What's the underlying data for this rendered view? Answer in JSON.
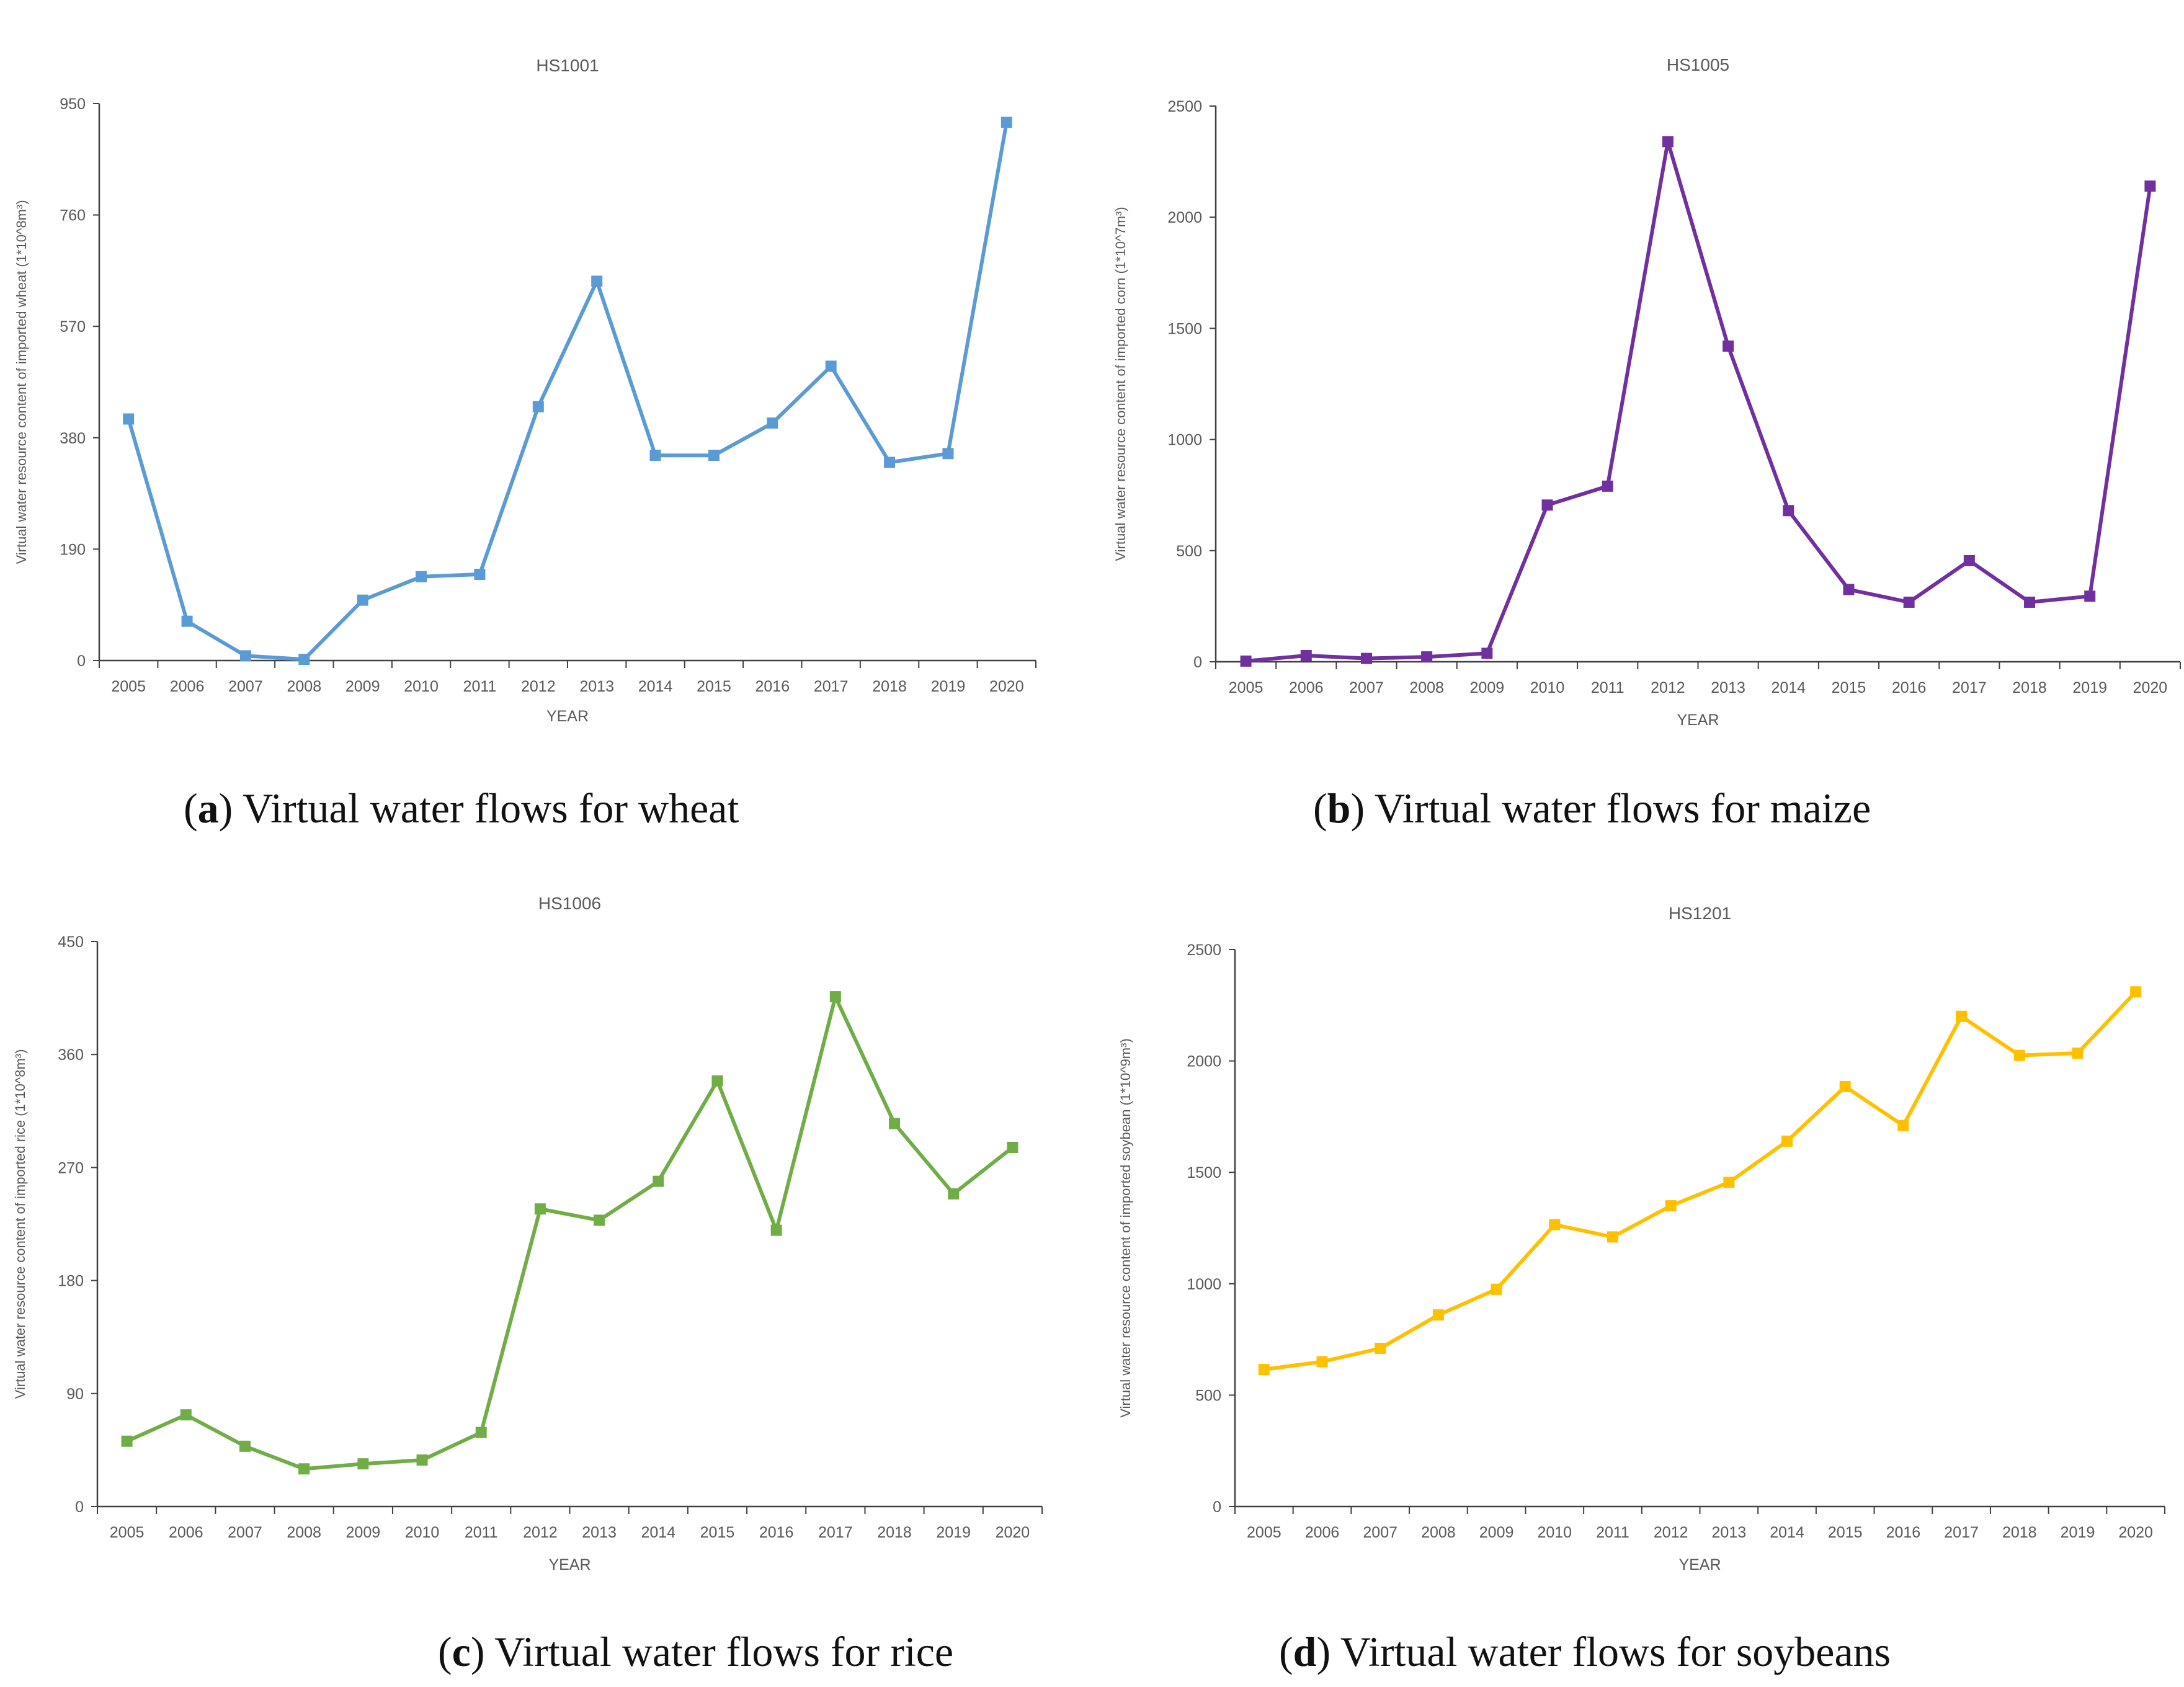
{
  "colors": {
    "wheat": "#5b9bd5",
    "maize": "#7030a0",
    "rice": "#70ad47",
    "soybean": "#ffc000",
    "axis": "#404040",
    "text": "#595959"
  },
  "chart_data": [
    {
      "id": "a",
      "type": "line",
      "title": "HS1001",
      "xlabel": "YEAR",
      "ylabel": "Virtual water resource content of imported wheat   (1*10^8m³)",
      "ylim": [
        0,
        950
      ],
      "yticks": [
        "0",
        "190",
        "380",
        "570",
        "760",
        "950"
      ],
      "categories": [
        "2005",
        "2006",
        "2007",
        "2008",
        "2009",
        "2010",
        "2011",
        "2012",
        "2013",
        "2014",
        "2015",
        "2016",
        "2017",
        "2018",
        "2019",
        "2020"
      ],
      "series": [
        {
          "name": "wheat",
          "values": [
            412,
            67,
            8,
            2,
            103,
            143,
            147,
            433,
            647,
            350,
            350,
            405,
            502,
            338,
            353,
            918
          ]
        }
      ],
      "caption_letter": "a",
      "caption_text": "Virtual water flows for wheat"
    },
    {
      "id": "b",
      "type": "line",
      "title": "HS1005",
      "xlabel": "YEAR",
      "ylabel": "Virtual water resource content of imported corn   (1*10^7m³)",
      "ylim": [
        0,
        2500
      ],
      "yticks": [
        "0",
        "500",
        "1000",
        "1500",
        "2000",
        "2500"
      ],
      "categories": [
        "2005",
        "2006",
        "2007",
        "2008",
        "2009",
        "2010",
        "2011",
        "2012",
        "2013",
        "2014",
        "2015",
        "2016",
        "2017",
        "2018",
        "2019",
        "2020"
      ],
      "series": [
        {
          "name": "maize",
          "values": [
            3,
            28,
            15,
            22,
            38,
            705,
            790,
            2340,
            1420,
            680,
            325,
            268,
            455,
            268,
            295,
            2140
          ]
        }
      ],
      "caption_letter": "b",
      "caption_text": "Virtual water flows for maize"
    },
    {
      "id": "c",
      "type": "line",
      "title": "HS1006",
      "xlabel": "YEAR",
      "ylabel": "Virtual water resource content of imported rice   (1*10^8m³)",
      "ylim": [
        0,
        450
      ],
      "yticks": [
        "0",
        "90",
        "180",
        "270",
        "360",
        "450"
      ],
      "categories": [
        "2005",
        "2006",
        "2007",
        "2008",
        "2009",
        "2010",
        "2011",
        "2012",
        "2013",
        "2014",
        "2015",
        "2016",
        "2017",
        "2018",
        "2019",
        "2020"
      ],
      "series": [
        {
          "name": "rice",
          "values": [
            52,
            73,
            48,
            30,
            34,
            37,
            59,
            237,
            228,
            259,
            339,
            220,
            406,
            305,
            249,
            286
          ]
        }
      ],
      "caption_letter": "c",
      "caption_text": "Virtual water flows for rice"
    },
    {
      "id": "d",
      "type": "line",
      "title": "HS1201",
      "xlabel": "YEAR",
      "ylabel": "Virtual water resource content of imported soybean   (1*10^9m³)",
      "ylim": [
        0,
        2500
      ],
      "yticks": [
        "0",
        "500",
        "1000",
        "1500",
        "2000",
        "2500"
      ],
      "categories": [
        "2005",
        "2006",
        "2007",
        "2008",
        "2009",
        "2010",
        "2011",
        "2012",
        "2013",
        "2014",
        "2015",
        "2016",
        "2017",
        "2018",
        "2019",
        "2020"
      ],
      "series": [
        {
          "name": "soybean",
          "values": [
            615,
            650,
            710,
            860,
            975,
            1265,
            1210,
            1350,
            1455,
            1640,
            1885,
            1710,
            2200,
            2025,
            2035,
            2310
          ]
        }
      ],
      "caption_letter": "d",
      "caption_text": "Virtual water flows for soybeans"
    }
  ]
}
